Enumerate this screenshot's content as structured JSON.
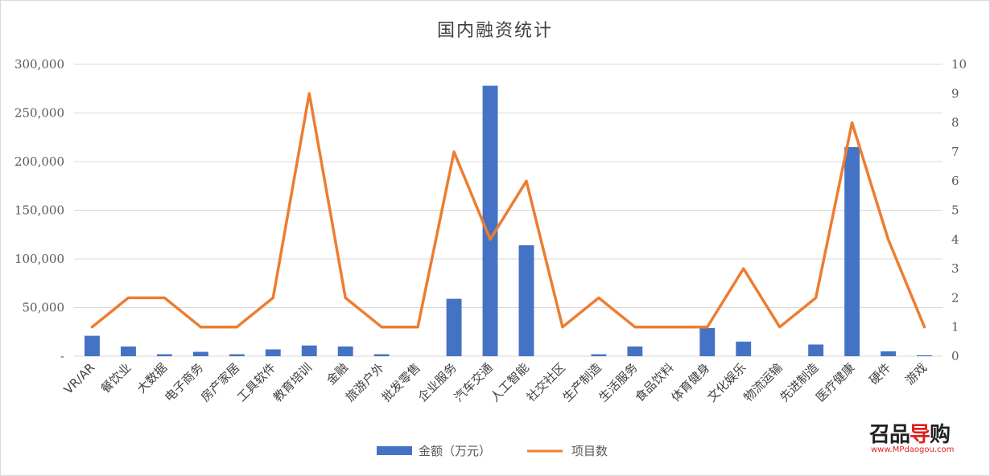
{
  "chart_data": {
    "type": "bar+line",
    "title": "国内融资统计",
    "categories": [
      "VR/AR",
      "餐饮业",
      "大数据",
      "电子商务",
      "房产家居",
      "工具软件",
      "教育培训",
      "金融",
      "旅游户外",
      "批发零售",
      "企业服务",
      "汽车交通",
      "人工智能",
      "社交社区",
      "生产制造",
      "生活服务",
      "食品饮料",
      "体育健身",
      "文化娱乐",
      "物流运输",
      "先进制造",
      "医疗健康",
      "硬件",
      "游戏"
    ],
    "series": [
      {
        "name": "金额（万元）",
        "type": "bar",
        "axis": "left",
        "color": "#4472c4",
        "values": [
          21000,
          10000,
          2000,
          4500,
          2000,
          7000,
          11000,
          10000,
          2000,
          0,
          59000,
          278000,
          114000,
          0,
          2000,
          10000,
          0,
          29000,
          15000,
          0,
          12000,
          215000,
          5000,
          1000
        ]
      },
      {
        "name": "项目数",
        "type": "line",
        "axis": "right",
        "color": "#ed7d31",
        "values": [
          1,
          2,
          2,
          1,
          1,
          2,
          9,
          2,
          1,
          1,
          7,
          4,
          6,
          1,
          2,
          1,
          1,
          1,
          3,
          1,
          2,
          8,
          4,
          1
        ]
      }
    ],
    "y_left": {
      "min": 0,
      "max": 300000,
      "step": 50000,
      "tick_labels": [
        "-",
        "50,000",
        "100,000",
        "150,000",
        "200,000",
        "250,000",
        "300,000"
      ]
    },
    "y_right": {
      "min": 0,
      "max": 10,
      "step": 1,
      "tick_labels": [
        "0",
        "1",
        "2",
        "3",
        "4",
        "5",
        "6",
        "7",
        "8",
        "9",
        "10"
      ]
    },
    "grid": true,
    "legend_position": "bottom"
  },
  "watermark": {
    "logo_part1": "召品",
    "logo_part2": "导",
    "logo_part3": "购",
    "url": "www.MPdaogou.com"
  }
}
